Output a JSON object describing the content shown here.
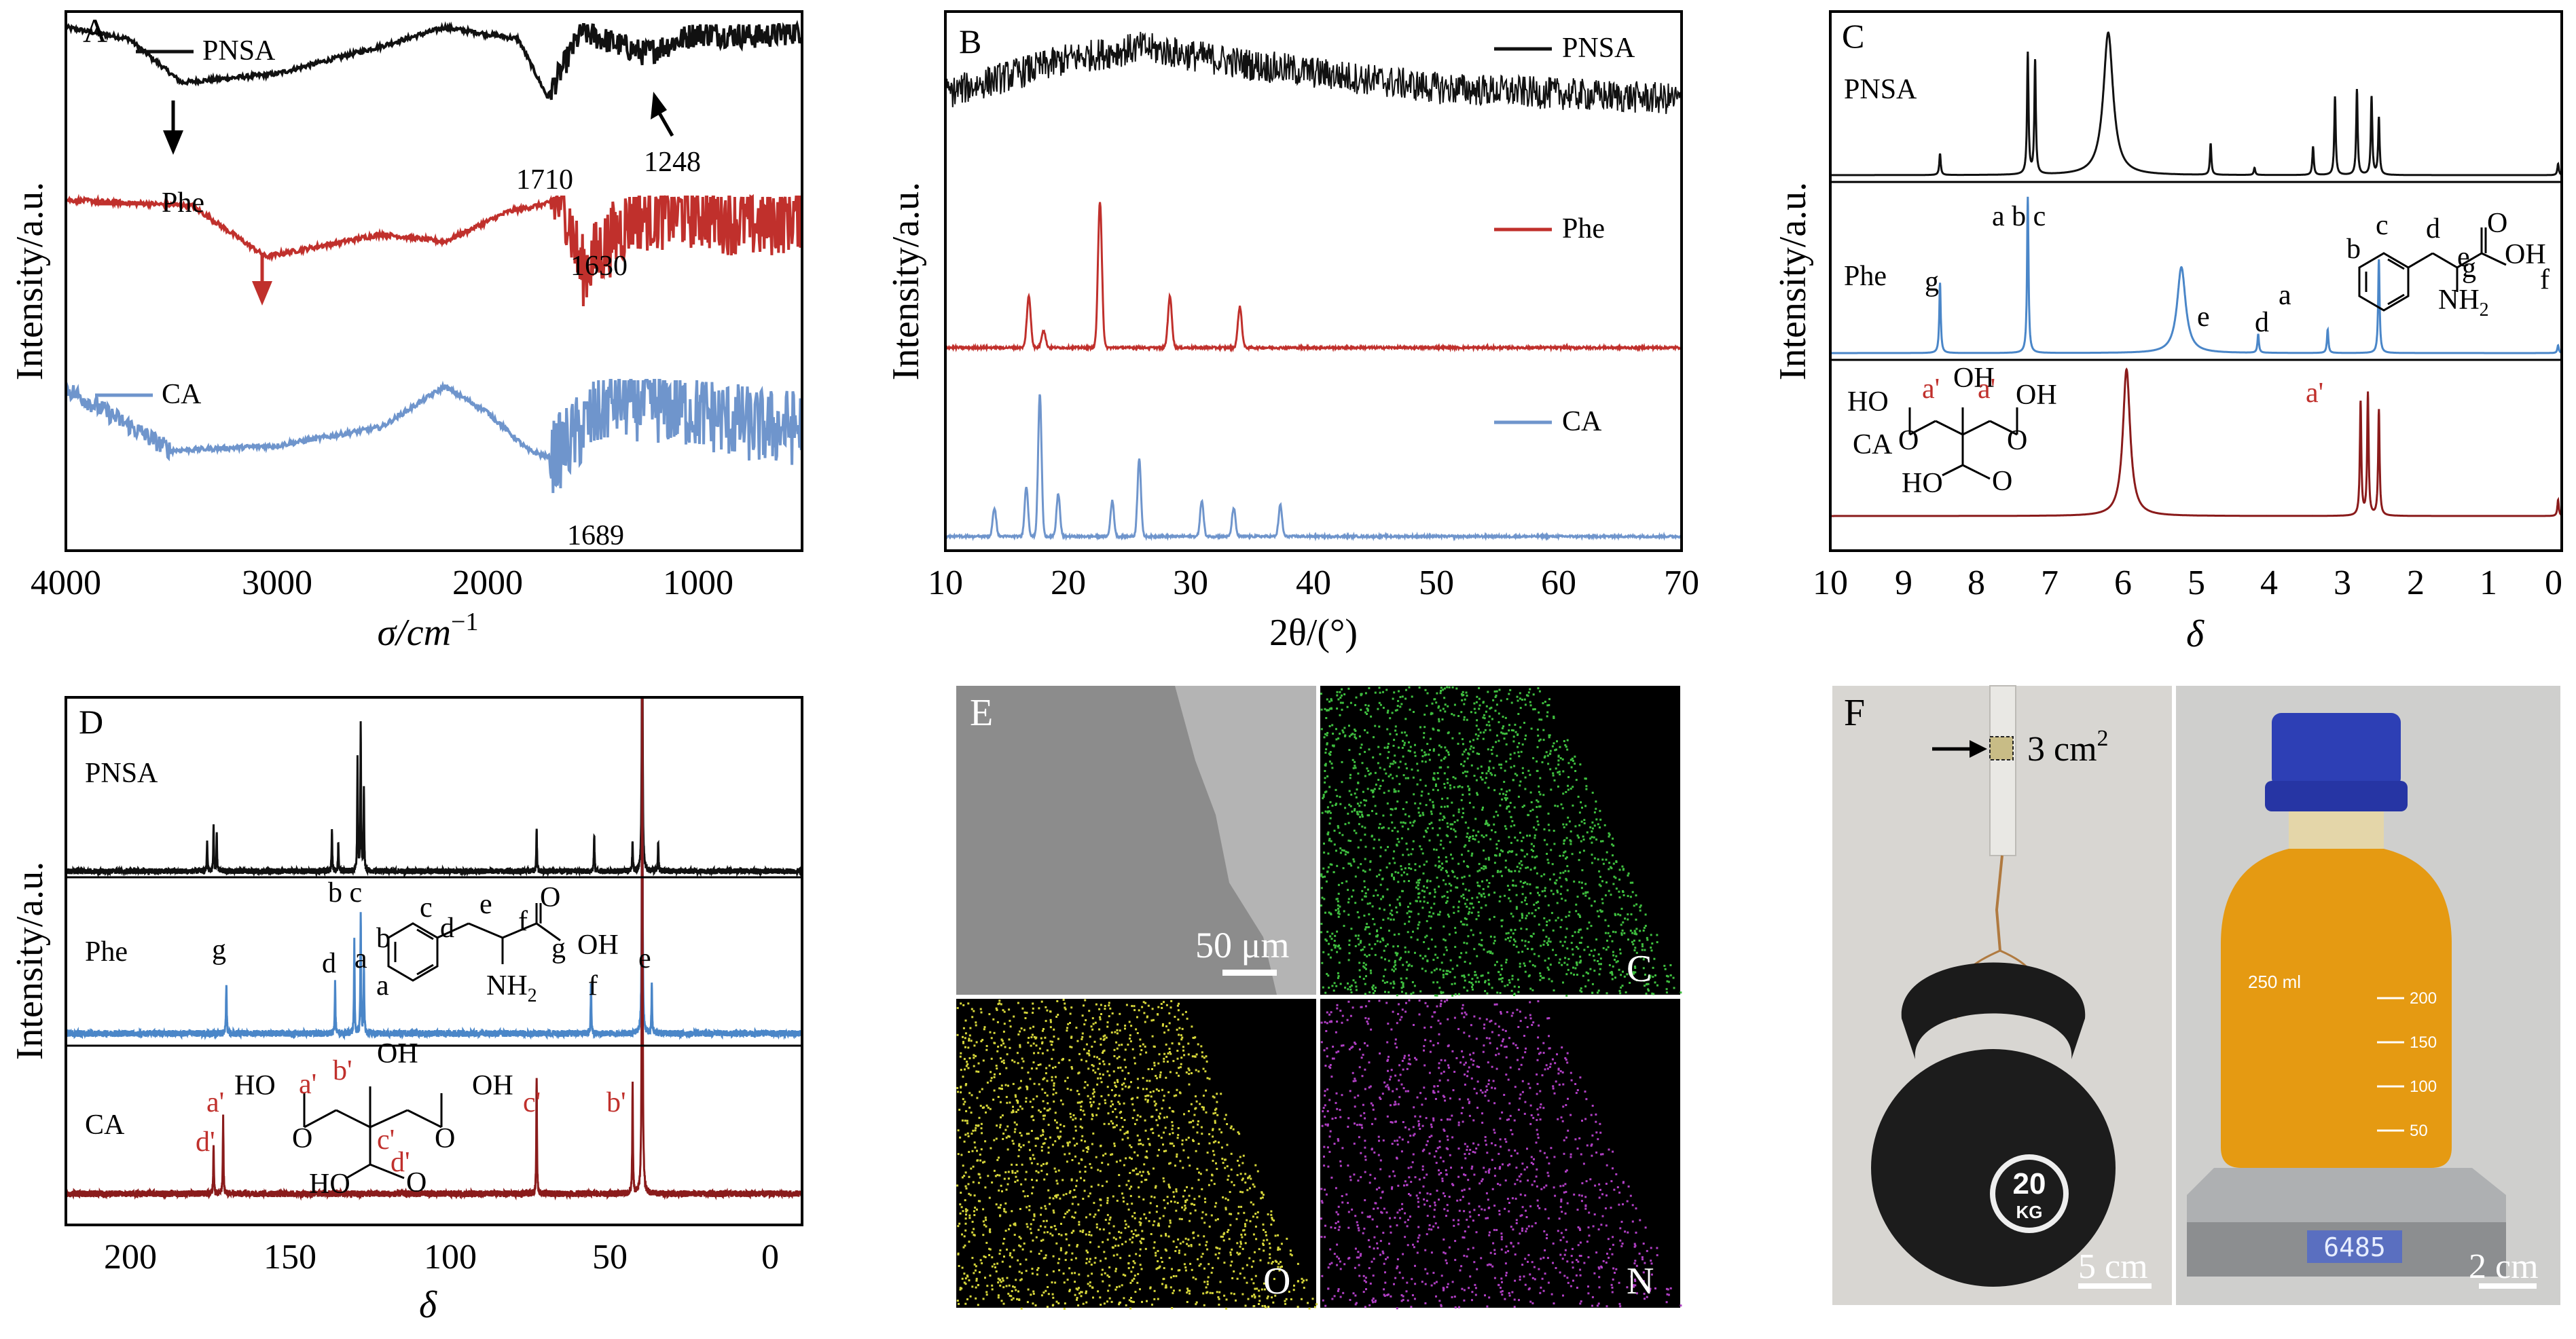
{
  "colors": {
    "pnsa": "#111111",
    "phe": "#c0302c",
    "ca": "#6f95cc",
    "ca_nmr": "#8a1b1b",
    "phe_nmr": "#4a86c8"
  },
  "panelA": {
    "letter": "A",
    "xlabel_main": "σ/cm",
    "xlabel_sup": "−1",
    "ylabel": "Intensity/a.u.",
    "ticks": [
      "4000",
      "3000",
      "2000",
      "1000"
    ],
    "legend": [
      "PNSA",
      "Phe",
      "CA"
    ],
    "annotations": [
      "1710",
      "1248",
      "1630",
      "1689"
    ]
  },
  "panelB": {
    "letter": "B",
    "xlabel": "2θ/(°)",
    "ylabel": "Intensity/a.u.",
    "ticks": [
      "10",
      "20",
      "30",
      "40",
      "50",
      "60",
      "70"
    ],
    "legend": [
      "PNSA",
      "Phe",
      "CA"
    ]
  },
  "panelC": {
    "letter": "C",
    "xlabel": "δ",
    "ylabel": "Intensity/a.u.",
    "ticks": [
      "10",
      "9",
      "8",
      "7",
      "6",
      "5",
      "4",
      "3",
      "2",
      "1",
      "0"
    ],
    "traces": [
      "PNSA",
      "Phe",
      "CA"
    ],
    "peak_letters": [
      "a b c",
      "g",
      "e",
      "d",
      "a",
      "f",
      "a'"
    ],
    "struct_phe": [
      "b",
      "c",
      "d",
      "e",
      "g",
      "a",
      "OH",
      "NH",
      "2",
      "O"
    ],
    "struct_ca": [
      "OH",
      "HO",
      "a'",
      "a'",
      "OH",
      "HO",
      "O",
      "O",
      "O"
    ]
  },
  "panelD": {
    "letter": "D",
    "xlabel": "δ",
    "ylabel": "Intensity/a.u.",
    "ticks": [
      "200",
      "150",
      "100",
      "50",
      "0"
    ],
    "traces": [
      "PNSA",
      "Phe",
      "CA"
    ],
    "peak_letters": [
      "b c",
      "g",
      "d",
      "a",
      "f",
      "e",
      "a'",
      "d'",
      "c'",
      "b'"
    ],
    "struct_phe": [
      "c",
      "e",
      "f",
      "d",
      "b",
      "a",
      "g",
      "OH",
      "NH",
      "2",
      "O"
    ],
    "struct_ca": [
      "a'",
      "b'",
      "HO",
      "OH",
      "OH",
      "c'",
      "d'",
      "HO",
      "O",
      "O",
      "O"
    ]
  },
  "panelE": {
    "letter": "E",
    "scale": "50 μm",
    "maps": [
      "C",
      "O",
      "N"
    ]
  },
  "panelF": {
    "letter": "F",
    "area_main": "3 cm",
    "area_sup": "2",
    "kettlebell": "20",
    "kettlebell_unit": "KG",
    "scale_left": "5 cm",
    "scale_right": "2 cm",
    "scale_reading": "6485",
    "bottle_brand": "250 ml",
    "graduations": [
      "200",
      "150",
      "100",
      "50"
    ]
  },
  "chart_data": [
    {
      "type": "line",
      "title": "A",
      "xlabel": "σ/cm−1",
      "ylabel": "Intensity/a.u.",
      "xlim": [
        4000,
        500
      ],
      "series": [
        {
          "name": "PNSA",
          "x": [
            4000,
            3700,
            3450,
            3000,
            2500,
            2200,
            1850,
            1710,
            1550,
            1248,
            1000,
            700,
            500
          ],
          "y": [
            0.98,
            0.9,
            0.6,
            0.66,
            0.85,
            0.98,
            0.9,
            0.5,
            0.95,
            0.8,
            0.94,
            0.92,
            0.96
          ]
        },
        {
          "name": "Phe",
          "x": [
            4000,
            3400,
            3050,
            2500,
            2200,
            1900,
            1630,
            1550,
            1300,
            1000,
            700,
            500
          ],
          "y": [
            0.98,
            0.94,
            0.6,
            0.75,
            0.7,
            0.9,
            0.98,
            0.5,
            0.88,
            0.9,
            0.82,
            0.9
          ]
        },
        {
          "name": "CA",
          "x": [
            4000,
            3500,
            3000,
            2500,
            2200,
            2000,
            1800,
            1689,
            1400,
            1000,
            700,
            500
          ],
          "y": [
            0.95,
            0.55,
            0.58,
            0.7,
            0.96,
            0.8,
            0.55,
            0.5,
            0.88,
            0.8,
            0.7,
            0.7
          ]
        }
      ]
    },
    {
      "type": "line",
      "title": "B",
      "xlabel": "2θ/(°)",
      "ylabel": "Intensity/a.u.",
      "xlim": [
        10,
        70
      ],
      "series": [
        {
          "name": "PNSA",
          "x": [
            10,
            20,
            26,
            35,
            50,
            70
          ],
          "y": [
            0.6,
            0.9,
            1.0,
            0.85,
            0.65,
            0.55
          ]
        },
        {
          "name": "Phe",
          "x": [
            16.8,
            18,
            22.6,
            28.3,
            34.0
          ],
          "y": [
            0.35,
            0.12,
            1.0,
            0.35,
            0.28
          ]
        },
        {
          "name": "CA",
          "x": [
            14,
            16.6,
            17.7,
            19.2,
            23.6,
            25.8,
            30.9,
            33.5,
            37.3
          ],
          "y": [
            0.2,
            0.35,
            1.0,
            0.3,
            0.25,
            0.55,
            0.25,
            0.2,
            0.22
          ]
        }
      ]
    },
    {
      "type": "line",
      "title": "C",
      "xlabel": "δ",
      "ylabel": "Intensity/a.u.",
      "xlim": [
        10,
        0
      ],
      "series": [
        {
          "name": "PNSA",
          "x": [
            8.5,
            7.3,
            7.2,
            6.2,
            4.8,
            4.2,
            3.4,
            3.1,
            2.8,
            2.6,
            2.5,
            0.05
          ],
          "y": [
            0.15,
            0.85,
            0.8,
            1.0,
            0.22,
            0.05,
            0.2,
            0.55,
            0.6,
            0.55,
            0.4,
            0.08
          ]
        },
        {
          "name": "Phe",
          "x": [
            8.5,
            7.3,
            5.2,
            4.15,
            3.2,
            2.5,
            0.05
          ],
          "y": [
            0.45,
            1.0,
            0.55,
            0.12,
            0.15,
            0.6,
            0.05
          ]
        },
        {
          "name": "CA",
          "x": [
            5.95,
            2.75,
            2.65,
            2.5,
            0.05
          ],
          "y": [
            0.9,
            0.7,
            0.75,
            0.65,
            0.1
          ]
        }
      ]
    },
    {
      "type": "line",
      "title": "D",
      "xlabel": "δ",
      "ylabel": "Intensity/a.u.",
      "xlim": [
        220,
        -10
      ],
      "series": [
        {
          "name": "PNSA",
          "x": [
            176,
            174,
            173,
            137,
            135,
            129,
            128,
            127,
            73,
            55,
            43,
            40,
            35
          ],
          "y": [
            0.2,
            0.3,
            0.25,
            0.3,
            0.2,
            0.75,
            1.0,
            0.55,
            0.3,
            0.25,
            0.2,
            3.0,
            0.2
          ]
        },
        {
          "name": "Phe",
          "x": [
            170,
            136,
            130,
            128,
            127,
            56,
            40,
            37
          ],
          "y": [
            0.3,
            0.3,
            0.55,
            0.7,
            0.4,
            0.3,
            2.5,
            0.3
          ]
        },
        {
          "name": "CA",
          "x": [
            174,
            171,
            73,
            43,
            40
          ],
          "y": [
            0.3,
            0.45,
            0.7,
            0.65,
            4.0
          ]
        }
      ]
    }
  ]
}
